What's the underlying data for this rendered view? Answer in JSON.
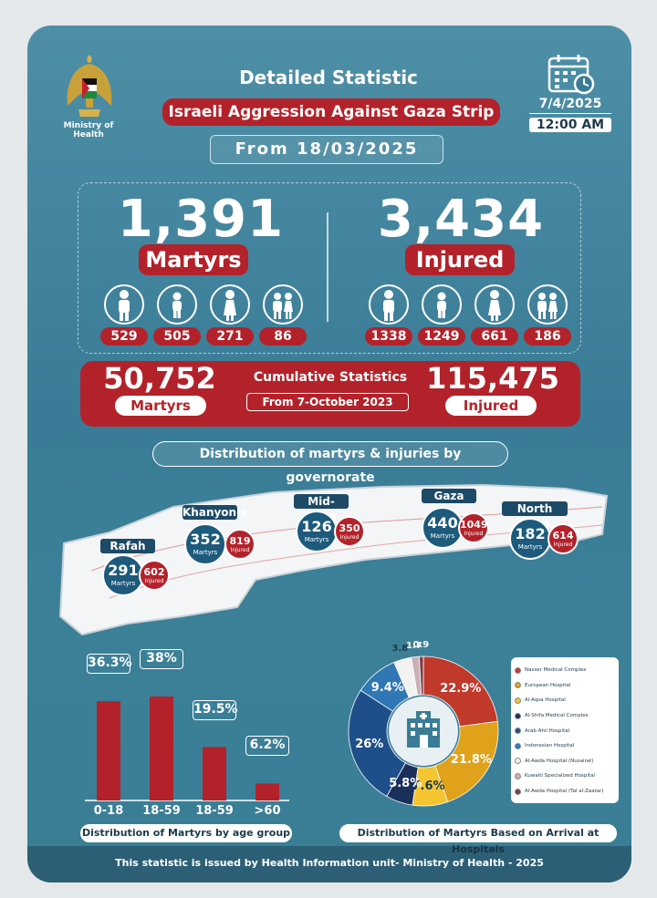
{
  "header": {
    "title": "Detailed Statistic",
    "subtitle": "Israeli Aggression Against Gaza Strip",
    "from": "From 18/03/2025",
    "ministry": "Ministry of Health",
    "date": "7/4/2025",
    "time": "12:00 AM"
  },
  "martyrs": {
    "total": "1,391",
    "label": "Martyrs",
    "breakdown": [
      "529",
      "505",
      "271",
      "86"
    ]
  },
  "injured": {
    "total": "3,434",
    "label": "Injured",
    "breakdown": [
      "1338",
      "1249",
      "661",
      "186"
    ]
  },
  "cumulative": {
    "martyrs": "50,752",
    "martyrs_label": "Martyrs",
    "injured": "115,475",
    "injured_label": "Injured",
    "title": "Cumulative Statistics",
    "since": "From 7-October 2023"
  },
  "distribution_title": "Distribution of martyrs & injuries by governorate",
  "governorates": [
    {
      "name": "Rafah",
      "martyrs": "291",
      "injured": "602"
    },
    {
      "name": "Khanyonis",
      "martyrs": "352",
      "injured": "819"
    },
    {
      "name": "Mid- Zone",
      "martyrs": "126",
      "injured": "350"
    },
    {
      "name": "Gaza",
      "martyrs": "440",
      "injured": "1049"
    },
    {
      "name": "North Gaza",
      "martyrs": "182",
      "injured": "614"
    }
  ],
  "martyrs_word": "Martyrs",
  "injured_word": "Injured",
  "chart_data": [
    {
      "type": "bar",
      "categories": [
        "0-18",
        "18-59",
        "18-59",
        ">60"
      ],
      "values": [
        36.3,
        38,
        19.5,
        6.2
      ],
      "labels": [
        "36.3%",
        "38%",
        "19.5%",
        "6.2%"
      ],
      "caption": "Distribution of Martyrs by age group",
      "ylim": [
        0,
        40
      ],
      "color": "#b3222a"
    },
    {
      "type": "pie",
      "caption": "Distribution of Martyrs Based on Arrival at Hospitals",
      "slices": [
        {
          "name": "Nasser Medical Complex",
          "value": 22.9,
          "label": "22.9%",
          "color": "#c0392b"
        },
        {
          "name": "European Hospital",
          "value": 21.8,
          "label": "21.8%",
          "color": "#e0a21a"
        },
        {
          "name": "Al-Aqsa Hospital",
          "value": 7.6,
          "label": "7.6%",
          "color": "#f4c531"
        },
        {
          "name": "Al-Shifa Medical Complex",
          "value": 5.8,
          "label": "5.8%",
          "color": "#1a2f5a"
        },
        {
          "name": "Arab Ahli Hospital",
          "value": 26,
          "label": "26%",
          "color": "#1f4f8a"
        },
        {
          "name": "Indonesian Hospital",
          "value": 9.4,
          "label": "9.4%",
          "color": "#2f78b5"
        },
        {
          "name": "Al-Awda Hospital (Nusairat)",
          "value": 3.8,
          "label": "3.8",
          "color": "#f2f2f2"
        },
        {
          "name": "Kuwaiti Specialized Hospital",
          "value": 1.7,
          "label": "1.7",
          "color": "#c9b0b4"
        },
        {
          "name": "Al-Awda Hospital (Tal al-Zaatar)",
          "value": 0.9,
          "label": "0.9",
          "color": "#7a4048"
        }
      ]
    }
  ],
  "footer": "This statistic is issued by Health Information unit- Ministry of Health - 2025"
}
